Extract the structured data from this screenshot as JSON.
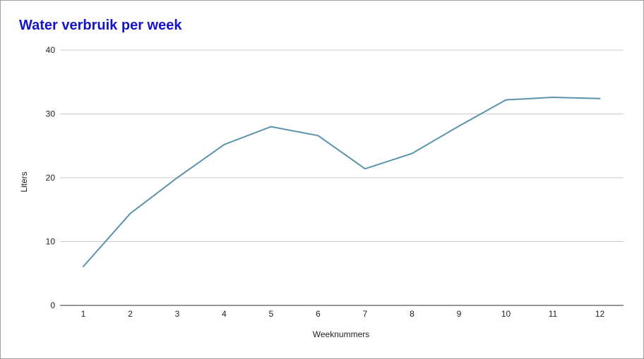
{
  "chart_data": {
    "type": "line",
    "title": "Water verbruik per week",
    "xlabel": "Weeknummers",
    "ylabel": "Liters",
    "ylim": [
      0,
      40
    ],
    "yticks": [
      0,
      10,
      20,
      30,
      40
    ],
    "grid": true,
    "legend": "none",
    "categories": [
      "1",
      "2",
      "3",
      "4",
      "5",
      "6",
      "7",
      "8",
      "9",
      "10",
      "11",
      "12"
    ],
    "series": [
      {
        "values": [
          6.1,
          14.4,
          20.0,
          25.2,
          28.0,
          26.6,
          21.4,
          23.8,
          28.1,
          32.2,
          32.6,
          32.4
        ],
        "color": "#5b93ad"
      }
    ],
    "colors": {
      "title": "#1414c8",
      "line": "#5b93ad",
      "grid": "#cccccc",
      "axis": "#333333"
    }
  }
}
